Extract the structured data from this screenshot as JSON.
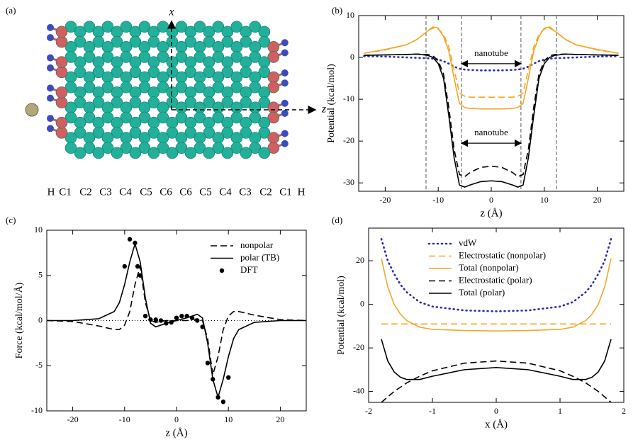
{
  "diagram": {
    "label": "(a)",
    "axes": [
      "x",
      "z"
    ],
    "atom_labels": [
      "H",
      "C1",
      "C2",
      "C3",
      "C4",
      "C5",
      "C6",
      "C6",
      "C5",
      "C4",
      "C3",
      "C2",
      "C1",
      "H"
    ]
  },
  "chart_data": [
    {
      "type": "line",
      "label": "(b)",
      "x_label": "z (Å)",
      "y_label": "Potential (kcal/mol)",
      "xlim": [
        -25,
        25
      ],
      "ylim": [
        -32,
        10
      ],
      "xticks": [
        -20,
        -10,
        0,
        10,
        20
      ],
      "yticks": [
        -30,
        -20,
        -10,
        0,
        10
      ],
      "vlines": [
        -12.3,
        -5.6,
        5.6,
        12.3
      ],
      "annotations": [
        {
          "text": "nanotube",
          "span": [
            -5.6,
            5.6
          ],
          "y": -1.5
        },
        {
          "text": "nanotube",
          "span": [
            -5.6,
            5.6
          ],
          "y": -20.5
        }
      ],
      "x": [
        -24,
        -20,
        -16,
        -14,
        -12,
        -11,
        -10,
        -9,
        -8,
        -7,
        -6,
        -5,
        -4,
        -2,
        0,
        2,
        4,
        5,
        6,
        7,
        8,
        9,
        10,
        11,
        12,
        14,
        16,
        20,
        24
      ],
      "series": [
        {
          "color": "#2b2bb5",
          "dash": "dotted",
          "values": [
            0.3,
            0.2,
            0,
            -0.1,
            -0.2,
            -0.3,
            -0.5,
            -0.9,
            -1.5,
            -2.2,
            -2.7,
            -2.9,
            -3,
            -3.1,
            -3.1,
            -3.1,
            -3,
            -2.9,
            -2.7,
            -2.2,
            -1.5,
            -0.9,
            -0.5,
            -0.3,
            -0.2,
            -0.1,
            0,
            0.2,
            0.3
          ]
        },
        {
          "color": "#f5a623",
          "dash": "dashed",
          "values": [
            1,
            1.8,
            3,
            4.3,
            6.3,
            7,
            6.8,
            5.5,
            2.5,
            -3,
            -8.5,
            -9.3,
            -9.5,
            -9.5,
            -9.5,
            -9.5,
            -9.5,
            -9.3,
            -8.5,
            -3,
            2.5,
            5.5,
            6.8,
            7,
            6.3,
            4.3,
            3,
            1.8,
            1
          ]
        },
        {
          "color": "#f5a623",
          "dash": "solid",
          "values": [
            1,
            1.9,
            3,
            4.3,
            6.3,
            7.3,
            7,
            5,
            1.5,
            -5,
            -11,
            -12,
            -12.2,
            -12.3,
            -12.3,
            -12.3,
            -12.2,
            -12,
            -11,
            -5,
            1.5,
            5,
            7,
            7.3,
            6.3,
            4.3,
            3,
            1.9,
            1
          ]
        },
        {
          "color": "#000000",
          "dash": "dashed",
          "values": [
            0.5,
            0.6,
            0.7,
            0.8,
            0.7,
            0.4,
            -0.8,
            -4,
            -12,
            -22,
            -28,
            -28.5,
            -27.5,
            -26.3,
            -26,
            -26.3,
            -27.5,
            -28.5,
            -28,
            -22,
            -12,
            -4,
            -0.8,
            0.4,
            0.7,
            0.8,
            0.7,
            0.6,
            0.5
          ]
        },
        {
          "color": "#000000",
          "dash": "solid",
          "values": [
            0.5,
            0.6,
            0.7,
            0.8,
            0.5,
            0,
            -1.5,
            -5,
            -14,
            -24,
            -30.5,
            -31,
            -30.5,
            -29.7,
            -29.5,
            -29.7,
            -30.5,
            -31,
            -30.5,
            -24,
            -14,
            -5,
            -1.5,
            0,
            0.5,
            0.8,
            0.7,
            0.6,
            0.5
          ]
        }
      ]
    },
    {
      "type": "line",
      "label": "(c)",
      "x_label": "z (Å)",
      "y_label": "Force (kcal/mol/Å)",
      "xlim": [
        -25,
        25
      ],
      "ylim": [
        -10,
        10
      ],
      "xticks": [
        -20,
        -10,
        0,
        10,
        20
      ],
      "yticks": [
        -10,
        -5,
        0,
        5,
        10
      ],
      "hlines": [
        0
      ],
      "legend": "upper right",
      "x": [
        -25,
        -20,
        -15,
        -12,
        -11,
        -10,
        -9,
        -8,
        -7,
        -6,
        -5,
        -4,
        -3,
        -2,
        0,
        2,
        3,
        4,
        5,
        6,
        7,
        8,
        9,
        10,
        11,
        12,
        15,
        20,
        25
      ],
      "series": [
        {
          "name": "nonpolar",
          "color": "#000000",
          "dash": "dashed",
          "values": [
            0,
            -0.1,
            -0.6,
            -1,
            -1,
            -0.5,
            1,
            4,
            6,
            2,
            0,
            -0.2,
            -0.1,
            0,
            0,
            0,
            0.1,
            0.2,
            0,
            -2,
            -6,
            -4,
            -1,
            0.5,
            1,
            1,
            0.6,
            0.1,
            0
          ]
        },
        {
          "name": "polar (TB)",
          "color": "#000000",
          "dash": "solid",
          "values": [
            0,
            0,
            0.2,
            1,
            2,
            4,
            6.5,
            8.5,
            6.5,
            2.5,
            -0.3,
            -0.7,
            -0.5,
            -0.3,
            0,
            0.3,
            0.5,
            0.7,
            0.3,
            -2.5,
            -6.5,
            -8.5,
            -6.5,
            -4,
            -2,
            -1,
            -0.2,
            0,
            0
          ]
        },
        {
          "name": "DFT",
          "color": "#000000",
          "marker": "circle",
          "x": [
            -10,
            -9,
            -8,
            -7.5,
            -7,
            -6,
            -5,
            -4,
            -3,
            -2,
            -1,
            0,
            1,
            2,
            3,
            4,
            5,
            6,
            7,
            8,
            9,
            10
          ],
          "values": [
            6,
            9,
            8.6,
            6,
            5,
            0.5,
            0.1,
            0.1,
            0,
            -0.3,
            -0.2,
            0.3,
            0.5,
            0.5,
            0.3,
            0,
            -0.7,
            -4.7,
            -6.5,
            -8.5,
            -9,
            -6.3
          ]
        }
      ]
    },
    {
      "type": "line",
      "label": "(d)",
      "x_label": "x (Å)",
      "y_label": "Potential (kcal/mol)",
      "xlim": [
        -2,
        2
      ],
      "ylim": [
        -45,
        35
      ],
      "xticks": [
        -2,
        -1,
        0,
        1,
        2
      ],
      "yticks": [
        -40,
        -20,
        0,
        20
      ],
      "legend": "upper center",
      "x": [
        -1.8,
        -1.7,
        -1.6,
        -1.5,
        -1.4,
        -1.2,
        -1,
        -0.5,
        0,
        0.5,
        1,
        1.2,
        1.4,
        1.5,
        1.6,
        1.7,
        1.8
      ],
      "series": [
        {
          "name": "vdW",
          "color": "#2b2bb5",
          "dash": "dotted",
          "values": [
            30,
            20,
            14,
            9,
            5.5,
            1,
            -1,
            -2.8,
            -3.2,
            -2.8,
            -1,
            1,
            5.5,
            9,
            14,
            20,
            30
          ]
        },
        {
          "name": "Electrostatic (nonpolar)",
          "color": "#f5a623",
          "dash": "dashed",
          "values": [
            -9,
            -9,
            -9,
            -9,
            -9,
            -9,
            -9,
            -9,
            -9,
            -9,
            -9,
            -9,
            -9,
            -9,
            -9,
            -9,
            -9
          ]
        },
        {
          "name": "Total (nonpolar)",
          "color": "#f5a623",
          "dash": "solid",
          "values": [
            21,
            8,
            0,
            -4.5,
            -7.5,
            -10.5,
            -11.5,
            -12,
            -12.2,
            -12,
            -11.5,
            -10.5,
            -7.5,
            -4.5,
            0,
            8,
            21
          ]
        },
        {
          "name": "Electrostatic (polar)",
          "color": "#000000",
          "dash": "dashed",
          "values": [
            -45,
            -42.5,
            -40,
            -38,
            -36,
            -33,
            -30.5,
            -27,
            -26,
            -27,
            -30.5,
            -33,
            -36,
            -38,
            -40,
            -42.5,
            -45
          ]
        },
        {
          "name": "Total (polar)",
          "color": "#000000",
          "dash": "solid",
          "values": [
            -16,
            -26,
            -31,
            -33.5,
            -34.5,
            -34.5,
            -33,
            -30,
            -29,
            -30,
            -33,
            -34.5,
            -34.5,
            -33.5,
            -31,
            -26,
            -16
          ]
        }
      ]
    }
  ]
}
